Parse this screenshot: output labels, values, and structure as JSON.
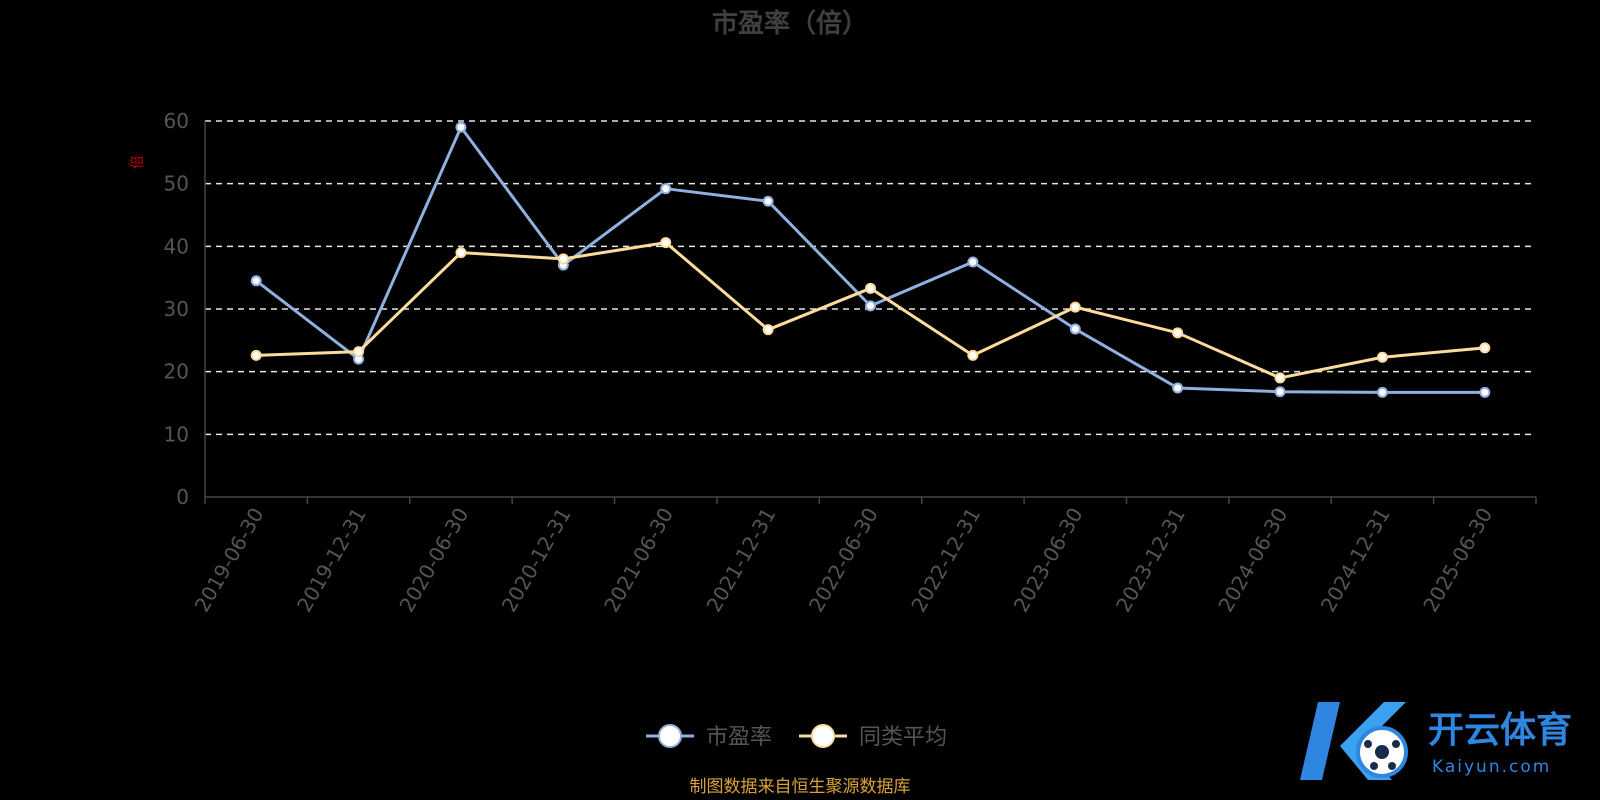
{
  "chart_data": {
    "type": "line",
    "title": "市盈率（倍）",
    "ylabel": "倍",
    "xlabel": "",
    "categories": [
      "2019-06-30",
      "2019-12-31",
      "2020-06-30",
      "2020-12-31",
      "2021-06-30",
      "2021-12-31",
      "2022-06-30",
      "2022-12-31",
      "2023-06-30",
      "2023-12-31",
      "2024-06-30",
      "2024-12-31",
      "2025-06-30"
    ],
    "series": [
      {
        "name": "市盈率",
        "color": "#8fb0e0",
        "values": [
          34.5,
          22.0,
          59.0,
          37.0,
          49.2,
          47.2,
          30.5,
          37.5,
          26.8,
          17.4,
          16.8,
          16.7,
          16.7
        ]
      },
      {
        "name": "同类平均",
        "color": "#fddc9b",
        "values": [
          22.6,
          23.2,
          39.0,
          38.0,
          40.6,
          26.7,
          33.3,
          22.6,
          30.3,
          26.2,
          19.0,
          22.3,
          23.8
        ]
      }
    ],
    "ylim": [
      0,
      60
    ],
    "yticks": [
      0,
      10,
      20,
      30,
      40,
      50,
      60
    ],
    "grid": true,
    "legend_position": "bottom-center"
  },
  "source_note": "制图数据来自恒生聚源数据库",
  "watermark": {
    "name_cn": "开云体育",
    "name_en": "Kaiyun.com",
    "color": "#2f86e0"
  }
}
